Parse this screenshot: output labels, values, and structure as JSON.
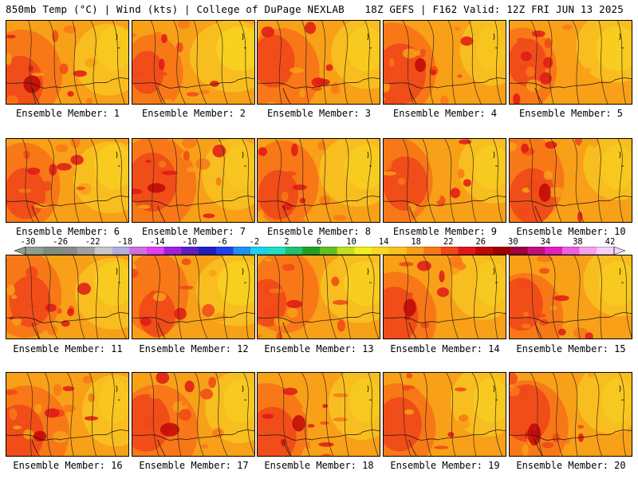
{
  "header": {
    "left": "850mb Temp (°C) | Wind (kts) | College of DuPage NEXLAB",
    "right": "18Z GEFS | F162 Valid: 12Z FRI JUN 13 2025"
  },
  "members": [
    {
      "label": "Ensemble Member: 1",
      "heat": 0.85
    },
    {
      "label": "Ensemble Member: 2",
      "heat": 0.45
    },
    {
      "label": "Ensemble Member: 3",
      "heat": 0.75
    },
    {
      "label": "Ensemble Member: 4",
      "heat": 1.0
    },
    {
      "label": "Ensemble Member: 5",
      "heat": 0.6
    },
    {
      "label": "Ensemble Member: 6",
      "heat": 0.7
    },
    {
      "label": "Ensemble Member: 7",
      "heat": 0.95
    },
    {
      "label": "Ensemble Member: 8",
      "heat": 0.65
    },
    {
      "label": "Ensemble Member: 9",
      "heat": 0.8
    },
    {
      "label": "Ensemble Member: 10",
      "heat": 0.85
    },
    {
      "label": "Ensemble Member: 11",
      "heat": 0.7
    },
    {
      "label": "Ensemble Member: 12",
      "heat": 0.55
    },
    {
      "label": "Ensemble Member: 13",
      "heat": 0.6
    },
    {
      "label": "Ensemble Member: 14",
      "heat": 0.9
    },
    {
      "label": "Ensemble Member: 15",
      "heat": 0.75
    },
    {
      "label": "Ensemble Member: 16",
      "heat": 0.95
    },
    {
      "label": "Ensemble Member: 17",
      "heat": 0.9
    },
    {
      "label": "Ensemble Member: 18",
      "heat": 0.9
    },
    {
      "label": "Ensemble Member: 19",
      "heat": 0.8
    },
    {
      "label": "Ensemble Member: 20",
      "heat": 0.9
    }
  ],
  "colorbar": {
    "labels": [
      "-30",
      "-26",
      "-22",
      "-18",
      "-14",
      "-10",
      "-6",
      "-2",
      "2",
      "6",
      "10",
      "14",
      "18",
      "22",
      "26",
      "30",
      "34",
      "38",
      "42"
    ],
    "colors": [
      "#8f9f8f",
      "#7f8f7f",
      "#8a8a8a",
      "#a0a0a0",
      "#c8c8c8",
      "#b0b0e0",
      "#d070e0",
      "#e040f0",
      "#a020e0",
      "#6020c0",
      "#2020c0",
      "#2040f0",
      "#2090f0",
      "#20d0f0",
      "#20e0c0",
      "#20c070",
      "#20a020",
      "#60c020",
      "#c0e020",
      "#f0f020",
      "#f8d820",
      "#f8c020",
      "#f8a018",
      "#f87818",
      "#f04818",
      "#e01818",
      "#c00808",
      "#a00000",
      "#a00040",
      "#c01080",
      "#e020c0",
      "#f060e0",
      "#f8a0f0",
      "#f8d0f8"
    ]
  }
}
